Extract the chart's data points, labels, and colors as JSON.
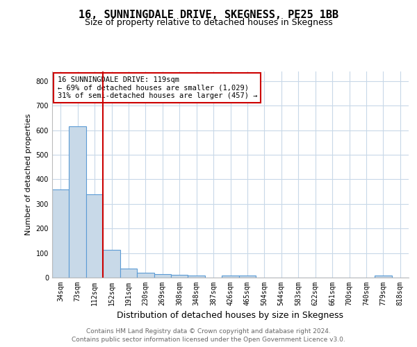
{
  "title": "16, SUNNINGDALE DRIVE, SKEGNESS, PE25 1BB",
  "subtitle": "Size of property relative to detached houses in Skegness",
  "xlabel": "Distribution of detached houses by size in Skegness",
  "ylabel": "Number of detached properties",
  "categories": [
    "34sqm",
    "73sqm",
    "112sqm",
    "152sqm",
    "191sqm",
    "230sqm",
    "269sqm",
    "308sqm",
    "348sqm",
    "387sqm",
    "426sqm",
    "465sqm",
    "504sqm",
    "544sqm",
    "583sqm",
    "622sqm",
    "661sqm",
    "700sqm",
    "740sqm",
    "779sqm",
    "818sqm"
  ],
  "values": [
    358,
    615,
    338,
    114,
    38,
    20,
    15,
    10,
    8,
    0,
    8,
    8,
    0,
    0,
    0,
    0,
    0,
    0,
    0,
    8,
    0
  ],
  "bar_color": "#c8d9e8",
  "bar_edge_color": "#5b9bd5",
  "property_line_color": "#cc0000",
  "property_line_x": 2.5,
  "annotation_text": "16 SUNNINGDALE DRIVE: 119sqm\n← 69% of detached houses are smaller (1,029)\n31% of semi-detached houses are larger (457) →",
  "annotation_box_edge_color": "#cc0000",
  "footer": "Contains HM Land Registry data © Crown copyright and database right 2024.\nContains public sector information licensed under the Open Government Licence v3.0.",
  "ylim": [
    0,
    840
  ],
  "yticks": [
    0,
    100,
    200,
    300,
    400,
    500,
    600,
    700,
    800
  ],
  "background_color": "#ffffff",
  "grid_color": "#c8d8e8",
  "title_fontsize": 11,
  "subtitle_fontsize": 9,
  "ylabel_fontsize": 8,
  "xlabel_fontsize": 9,
  "tick_fontsize": 7,
  "annotation_fontsize": 7.5,
  "footer_fontsize": 6.5
}
